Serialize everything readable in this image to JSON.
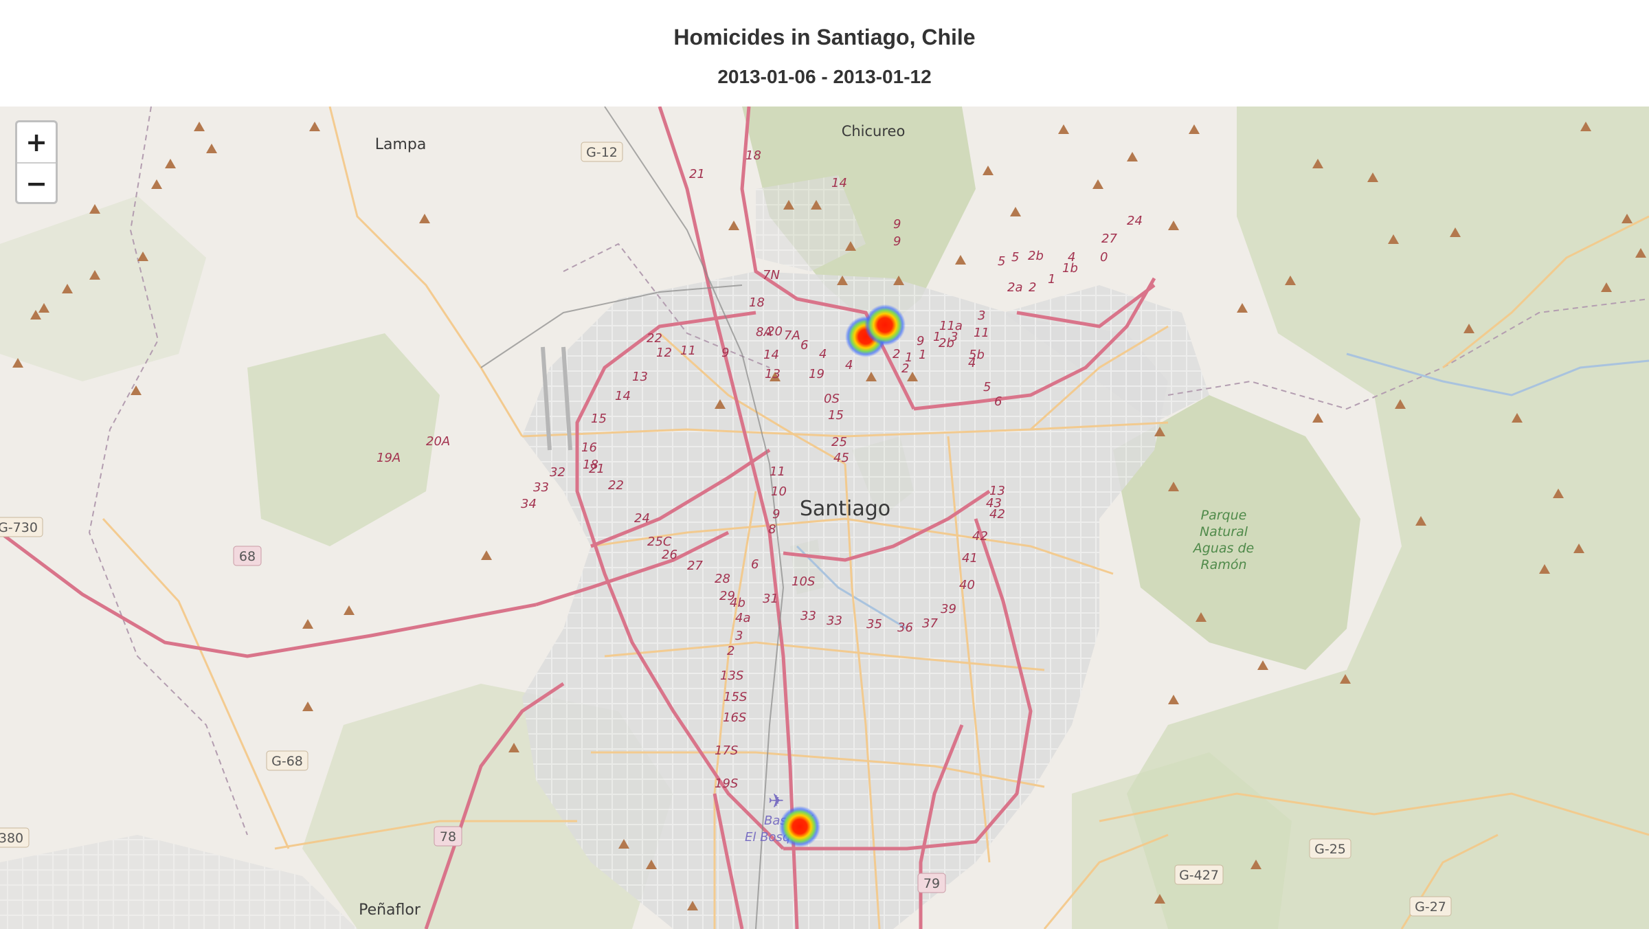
{
  "header": {
    "title": "Homicides in Santiago, Chile",
    "subtitle": "2013-01-06 - 2013-01-12"
  },
  "zoom": {
    "in_label": "+",
    "out_label": "−"
  },
  "map": {
    "base_color": "#f0ede8",
    "park_color": "#cdd9b6",
    "urban_color": "#dcdcdc",
    "primary_road_color": "#d9748a",
    "secondary_road_color": "#f3c98b",
    "heatmap_points": [
      {
        "label": "north-cluster-a",
        "intensity": 1.0
      },
      {
        "label": "north-cluster-b",
        "intensity": 1.0
      },
      {
        "label": "south-point",
        "intensity": 1.0
      }
    ],
    "places": {
      "santiago": "Santiago",
      "lampa": "Lampa",
      "chicureo": "Chicureo",
      "penaflor": "Peñaflor",
      "parque_line1": "Parque",
      "parque_line2": "Natural",
      "parque_line3": "Aguas de",
      "parque_line4": "Ramón",
      "base_line1": "Base Aé",
      "base_line2": "El Bosque"
    },
    "shields": {
      "g12": "G-12",
      "g730": "G-730",
      "r68": "68",
      "g68": "G-68",
      "r78": "78",
      "r380": "380",
      "r79": "79",
      "g25": "G-25",
      "g427": "G-427",
      "g27": "G-27"
    },
    "route_numbers": [
      "21",
      "18",
      "14",
      "9",
      "9",
      "8A",
      "7A",
      "6",
      "4",
      "4",
      "12",
      "11",
      "9",
      "13",
      "14",
      "15",
      "16",
      "18",
      "32",
      "33",
      "34",
      "19A",
      "20A",
      "21",
      "22",
      "24",
      "25C",
      "26",
      "27",
      "28",
      "29",
      "4b",
      "4a",
      "3",
      "2",
      "13S",
      "15S",
      "16S",
      "17S",
      "19S",
      "7N",
      "18",
      "20",
      "14",
      "13",
      "19",
      "0S",
      "15",
      "25",
      "45",
      "11",
      "10",
      "9",
      "8",
      "6",
      "10S",
      "31",
      "33",
      "33",
      "35",
      "36",
      "37",
      "39",
      "40",
      "41",
      "42",
      "42",
      "43",
      "13",
      "2",
      "2",
      "1",
      "1",
      "9",
      "2b",
      "3",
      "5b",
      "3",
      "11",
      "11a",
      "1",
      "4",
      "5",
      "6",
      "5",
      "5",
      "2b",
      "4",
      "2a",
      "2",
      "1",
      "1b",
      "0",
      "27",
      "24",
      "22"
    ]
  }
}
